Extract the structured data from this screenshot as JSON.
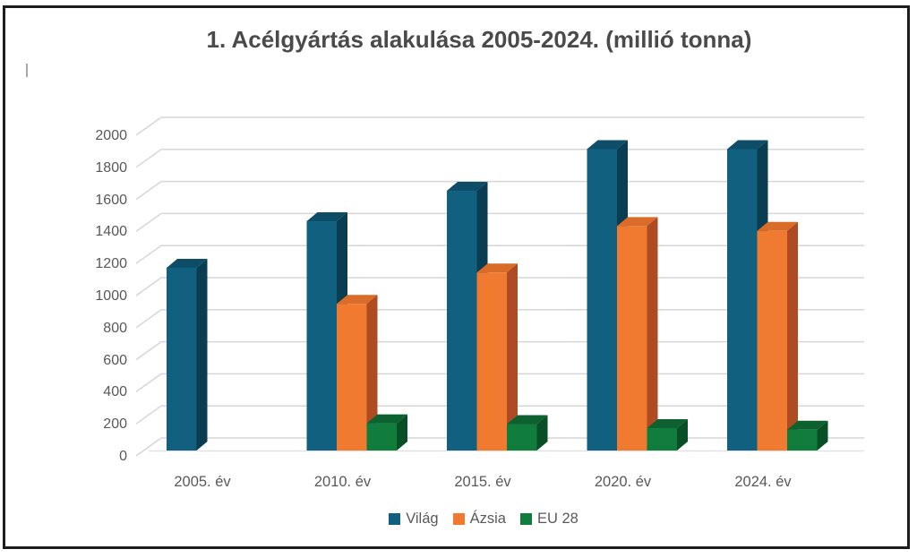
{
  "title": {
    "text": "1. Acélgyártás alakulása 2005-2024.  (millió tonna)",
    "color": "#4a4a4a"
  },
  "chart_data": {
    "type": "bar",
    "style": "3d-clustered-column",
    "title": "1. Acélgyártás alakulása 2005-2024. (millió tonna)",
    "categories": [
      "2005. év",
      "2010. év",
      "2015. év",
      "2020. év",
      "2024. év"
    ],
    "series": [
      {
        "name": "Világ",
        "color": "#116080",
        "top_color": "#0D4D68",
        "side_color": "#0A3C52",
        "values": [
          1140,
          1430,
          1620,
          1880,
          1880
        ]
      },
      {
        "name": "Ázsia",
        "color": "#F07B30",
        "top_color": "#D96C28",
        "side_color": "#AE4B22",
        "values": [
          null,
          915,
          1110,
          1400,
          1370
        ]
      },
      {
        "name": "EU 28",
        "color": "#107D3C",
        "top_color": "#0C612F",
        "side_color": "#094F26",
        "values": [
          null,
          170,
          165,
          140,
          130
        ]
      }
    ],
    "ylim": [
      0,
      2000
    ],
    "yticks": [
      0,
      200,
      400,
      600,
      800,
      1000,
      1200,
      1400,
      1600,
      1800,
      2000
    ],
    "xlabel": "",
    "ylabel": "",
    "grid": true,
    "gridline_color": "#D6D6D6",
    "floor_edge_color": "#E2E2E2",
    "axis_text_color": "#595959",
    "legend_position": "bottom",
    "legend": [
      "Világ",
      "Ázsia",
      "EU 28"
    ]
  }
}
